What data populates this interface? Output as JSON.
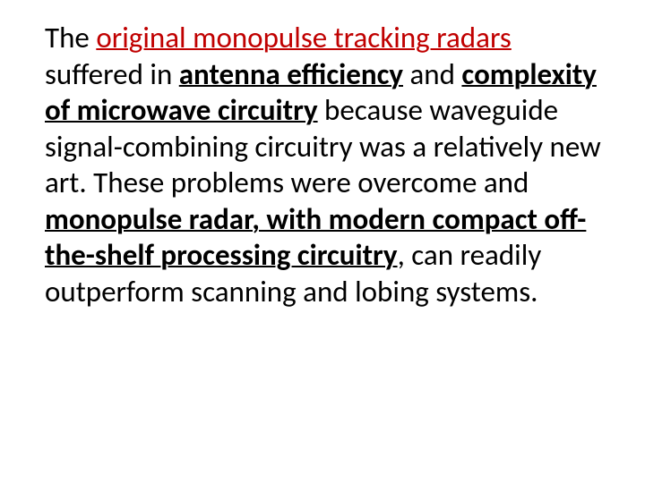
{
  "slide": {
    "background_color": "#ffffff",
    "text_color": "#000000",
    "accent_color": "#c00000",
    "font_family": "Calibri",
    "font_size_pt": 25,
    "line_height": 1.23,
    "segments": [
      {
        "text": "The ",
        "style": "plain"
      },
      {
        "text": "original monopulse tracking radars",
        "style": "red-underline"
      },
      {
        "text": " suffered in ",
        "style": "plain"
      },
      {
        "text": "antenna efficiency",
        "style": "bold-underline"
      },
      {
        "text": " and ",
        "style": "plain"
      },
      {
        "text": "complexity of microwave circuitry",
        "style": "bold-underline"
      },
      {
        "text": " because waveguide signal-combining circuitry was a relatively new art. These problems were overcome and ",
        "style": "plain"
      },
      {
        "text": "monopulse radar, with modern compact off-the-shelf processing circuitry",
        "style": "bold-underline"
      },
      {
        "text": ", can readily outperform scanning and lobing systems.",
        "style": "plain"
      }
    ]
  }
}
